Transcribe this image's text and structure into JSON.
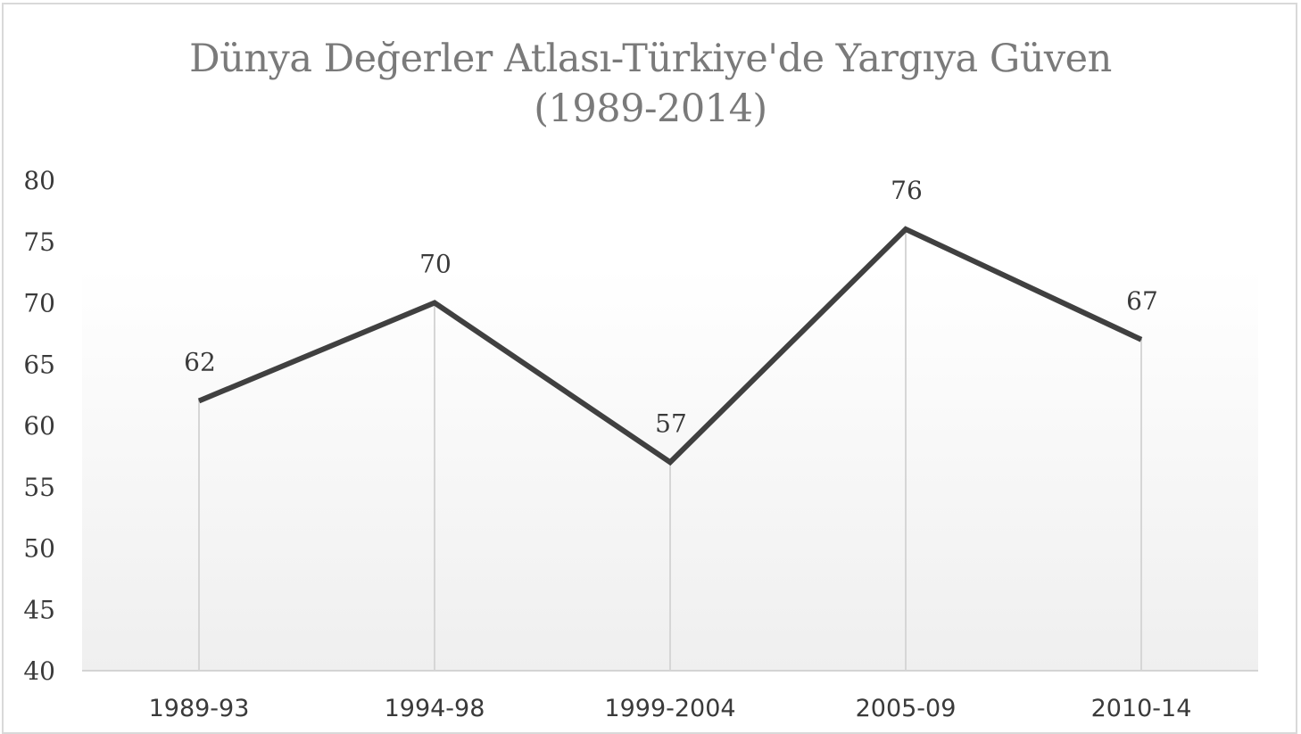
{
  "chart_data": {
    "type": "line",
    "title_line1": "Dünya Değerler  Atlası-Türkiye'de Yargıya Güven",
    "title_line2": "(1989-2014)",
    "categories": [
      "1989-93",
      "1994-98",
      "1999-2004",
      "2005-09",
      "2010-14"
    ],
    "values": [
      62,
      70,
      57,
      76,
      67
    ],
    "data_labels": [
      "62",
      "70",
      "57",
      "76",
      "67"
    ],
    "ylim": [
      40,
      80
    ],
    "yticks": [
      "40",
      "45",
      "50",
      "55",
      "60",
      "65",
      "70",
      "75",
      "80"
    ],
    "xlabel": "",
    "ylabel": "",
    "grid": "vertical drop lines",
    "legend": "none",
    "colors": {
      "line": "#404040",
      "drop_line": "#d6d6d6",
      "plot_bg_top": "#ffffff",
      "plot_bg_bottom": "#f1f1f1",
      "title": "#7a7a7a"
    }
  }
}
